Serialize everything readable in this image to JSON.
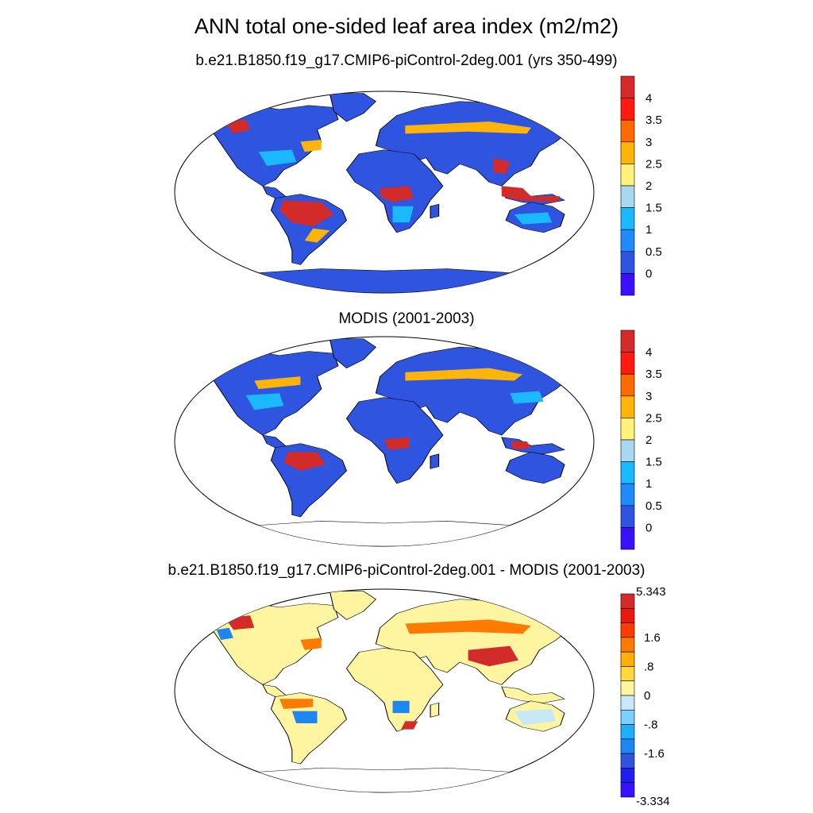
{
  "title": "ANN total one-sided leaf area index (m2/m2)",
  "panels": [
    {
      "subtitle": "b.e21.B1850.f19_g17.CMIP6-piControl-2deg.001 (yrs 350-499)",
      "colorbar": {
        "labels": [
          "4",
          "3.5",
          "3",
          "2.5",
          "2",
          "1.5",
          "1",
          "0.5",
          "0"
        ],
        "colors": [
          "#d32a2a",
          "#ff1a0f",
          "#ff6a00",
          "#ffb40a",
          "#fff27a",
          "#a8d8f0",
          "#1ab8ff",
          "#1e8cff",
          "#2f55e0",
          "#3a10ff"
        ]
      }
    },
    {
      "subtitle": "MODIS (2001-2003)",
      "colorbar": {
        "labels": [
          "4",
          "3.5",
          "3",
          "2.5",
          "2",
          "1.5",
          "1",
          "0.5",
          "0"
        ],
        "colors": [
          "#d32a2a",
          "#ff1a0f",
          "#ff6a00",
          "#ffb40a",
          "#fff27a",
          "#a8d8f0",
          "#1ab8ff",
          "#1e8cff",
          "#2f55e0",
          "#3a10ff"
        ]
      }
    },
    {
      "subtitle": "b.e21.B1850.f19_g17.CMIP6-piControl-2deg.001 - MODIS (2001-2003)",
      "colorbar": {
        "labels": [
          "5.343",
          "1.6",
          ".8",
          "0",
          "-.8",
          "-1.6",
          "-3.334"
        ],
        "colors": [
          "#d32a2a",
          "#e81a0f",
          "#ff3c00",
          "#ff7a00",
          "#ffae0a",
          "#ffd93c",
          "#fff5a0",
          "#c8e8f8",
          "#7cd0ff",
          "#1ab0ff",
          "#1e86f0",
          "#2f55e0",
          "#1e1ef0",
          "#3a10ff"
        ]
      }
    }
  ]
}
